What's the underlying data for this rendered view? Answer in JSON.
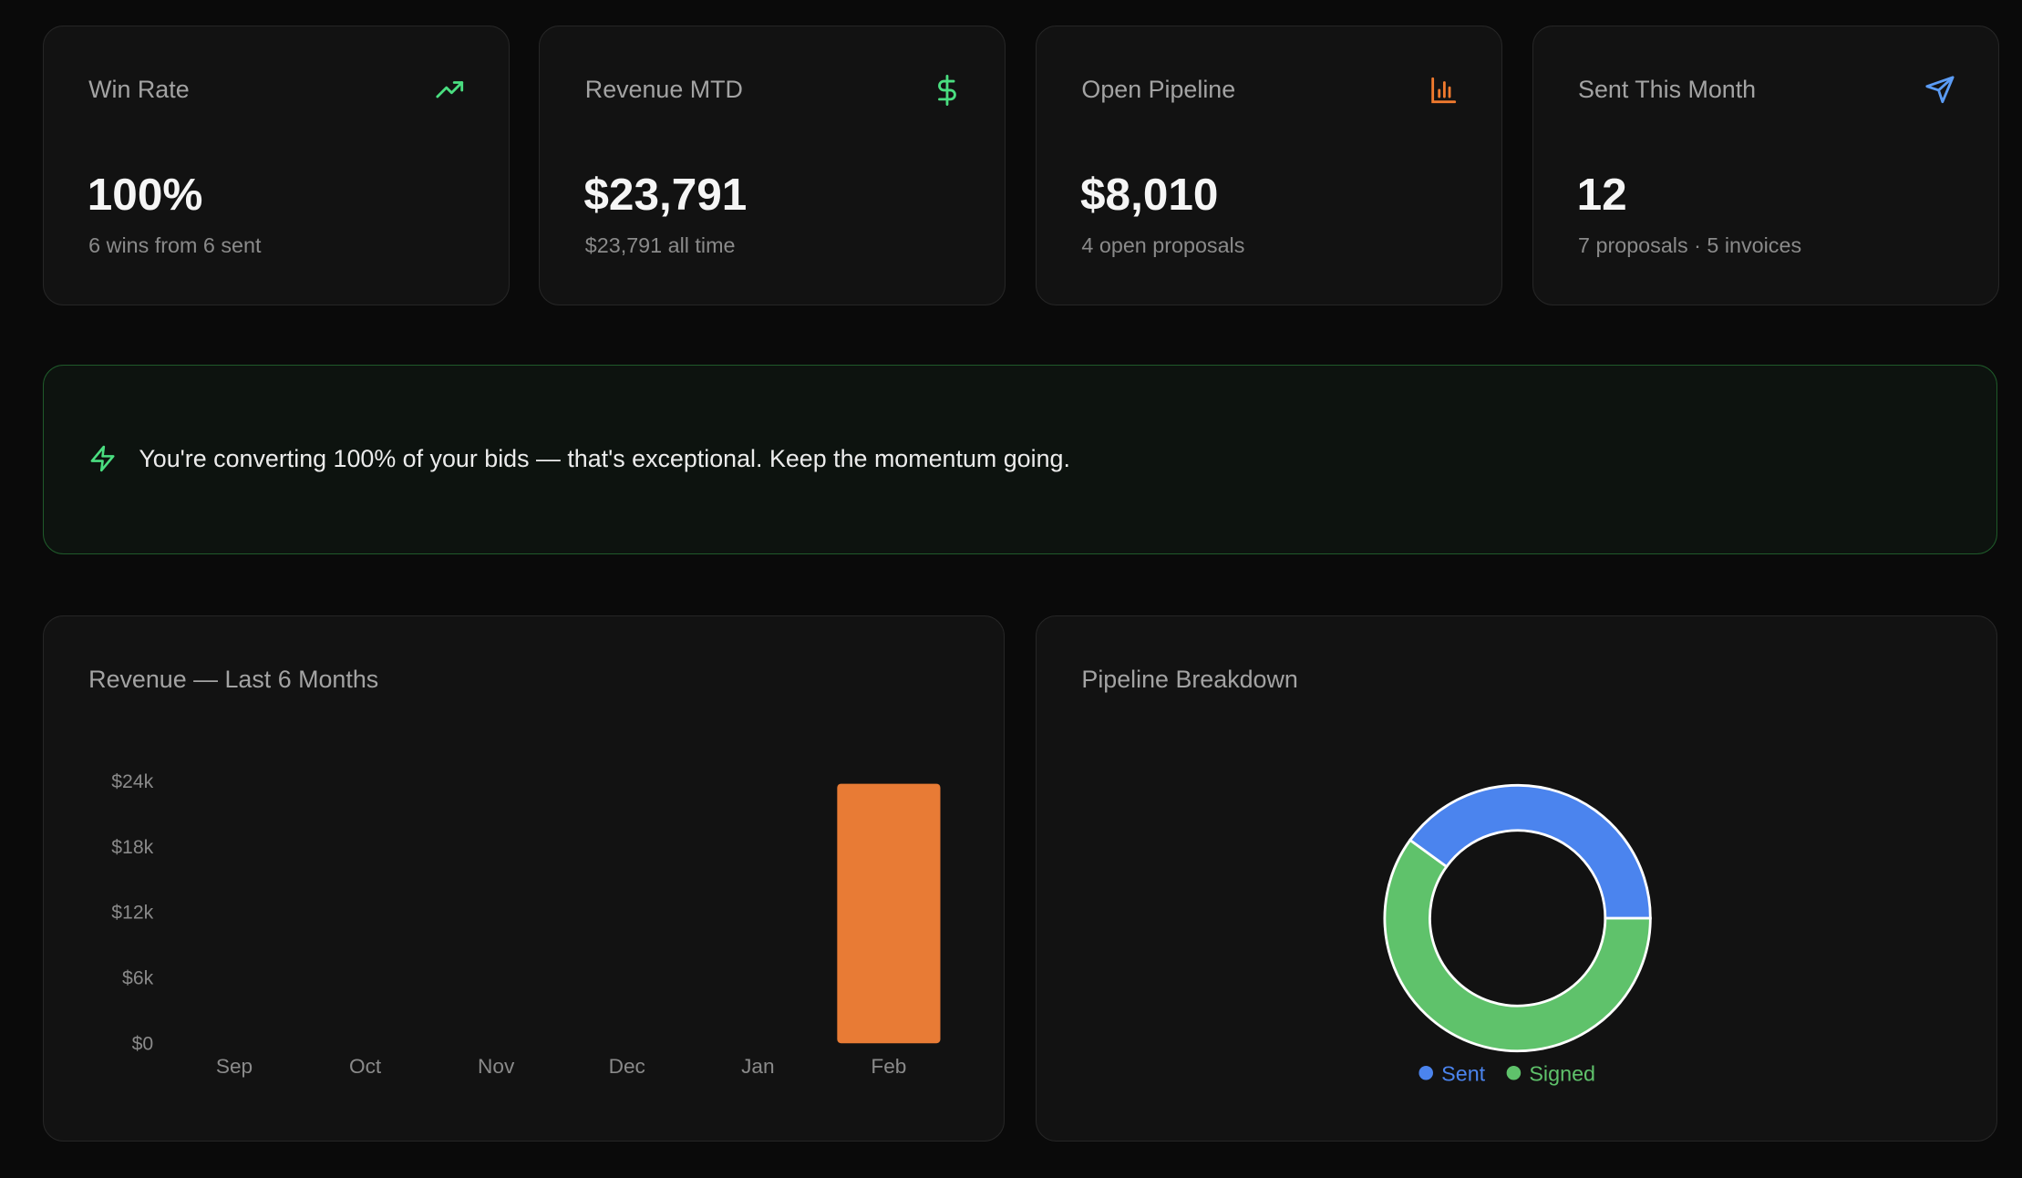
{
  "stats": [
    {
      "label": "Win Rate",
      "value": "100%",
      "sub": "6 wins from 6 sent",
      "icon": "trending-up-icon",
      "color": "#4ade80"
    },
    {
      "label": "Revenue MTD",
      "value": "$23,791",
      "sub": "$23,791 all time",
      "icon": "dollar-icon",
      "color": "#4ade80"
    },
    {
      "label": "Open Pipeline",
      "value": "$8,010",
      "sub": "4 open proposals",
      "icon": "bar-chart-icon",
      "color": "#f07a2e"
    },
    {
      "label": "Sent This Month",
      "value": "12",
      "sub": "7 proposals · 5 invoices",
      "icon": "send-icon",
      "color": "#5b9cf5"
    }
  ],
  "banner": {
    "icon": "zap-icon",
    "text": "You're converting 100% of your bids — that's exceptional. Keep the momentum going.",
    "color": "#4ade80"
  },
  "revenue_panel": {
    "title": "Revenue — Last 6 Months"
  },
  "pipeline_panel": {
    "title": "Pipeline Breakdown"
  },
  "chart_data": [
    {
      "type": "bar",
      "categories": [
        "Sep",
        "Oct",
        "Nov",
        "Dec",
        "Jan",
        "Feb"
      ],
      "values": [
        0,
        0,
        0,
        0,
        0,
        23791
      ],
      "yticks": [
        "$0",
        "$6k",
        "$12k",
        "$18k",
        "$24k"
      ],
      "ylim": [
        0,
        24000
      ],
      "color": "#e87b35",
      "grid": false
    },
    {
      "type": "pie",
      "variant": "donut",
      "labels": [
        "Sent",
        "Signed"
      ],
      "values": [
        4,
        6
      ],
      "colors": [
        "#4b84ee",
        "#5fc26b"
      ],
      "legend": "bottom"
    }
  ]
}
